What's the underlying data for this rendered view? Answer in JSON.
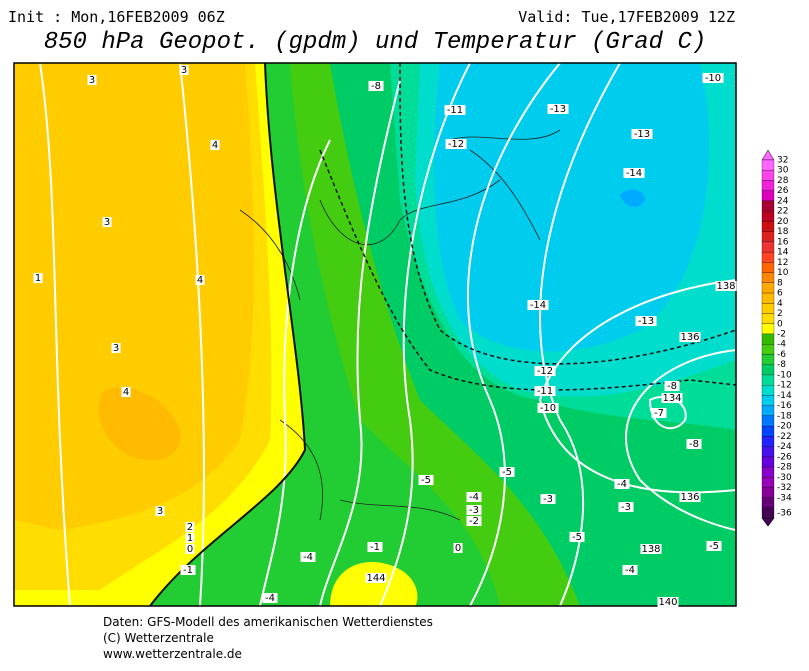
{
  "header": {
    "init": "Init : Mon,16FEB2009 06Z",
    "valid": "Valid: Tue,17FEB2009 12Z",
    "title": "850 hPa Geopot. (gpdm) und Temperatur (Grad C)"
  },
  "map": {
    "labels": [
      "3",
      "3",
      "4",
      "3",
      "1",
      "4",
      "3",
      "4",
      "3",
      "2",
      "1",
      "0",
      "-1",
      "-8",
      "-11",
      "-12",
      "-13",
      "-13",
      "-10",
      "-14",
      "-14",
      "-13",
      "138",
      "136",
      "-12",
      "-11",
      "-10",
      "-8",
      "134",
      "-7",
      "-8",
      "-5",
      "-5",
      "-4",
      "-3",
      "-2",
      "-3",
      "-4",
      "-3",
      "136",
      "-5",
      "138",
      "-5",
      "-4",
      "0",
      "-1",
      "-4",
      "144",
      "-4",
      "140"
    ]
  },
  "colorbar": {
    "levels": [
      {
        "label": "32",
        "color": "#ff66ff"
      },
      {
        "label": "30",
        "color": "#ff44ee"
      },
      {
        "label": "28",
        "color": "#ee22dd"
      },
      {
        "label": "26",
        "color": "#dd00bb"
      },
      {
        "label": "24",
        "color": "#aa0033"
      },
      {
        "label": "22",
        "color": "#bb0022"
      },
      {
        "label": "20",
        "color": "#cc1111"
      },
      {
        "label": "18",
        "color": "#dd2222"
      },
      {
        "label": "16",
        "color": "#ee3333"
      },
      {
        "label": "14",
        "color": "#ff4422"
      },
      {
        "label": "12",
        "color": "#ff6600"
      },
      {
        "label": "10",
        "color": "#ff8800"
      },
      {
        "label": "8",
        "color": "#ffaa00"
      },
      {
        "label": "6",
        "color": "#ffbb00"
      },
      {
        "label": "4",
        "color": "#ffcc00"
      },
      {
        "label": "2",
        "color": "#ffdd00"
      },
      {
        "label": "0",
        "color": "#ffff00"
      },
      {
        "label": "-2",
        "color": "#33bb00"
      },
      {
        "label": "-4",
        "color": "#44cc11"
      },
      {
        "label": "-6",
        "color": "#22cc33"
      },
      {
        "label": "-8",
        "color": "#00cc66"
      },
      {
        "label": "-10",
        "color": "#00dd99"
      },
      {
        "label": "-12",
        "color": "#00ddcc"
      },
      {
        "label": "-14",
        "color": "#00ccee"
      },
      {
        "label": "-16",
        "color": "#00aaff"
      },
      {
        "label": "-18",
        "color": "#0077ff"
      },
      {
        "label": "-20",
        "color": "#0044ff"
      },
      {
        "label": "-22",
        "color": "#2222ff"
      },
      {
        "label": "-24",
        "color": "#4411ee"
      },
      {
        "label": "-26",
        "color": "#6600dd"
      },
      {
        "label": "-28",
        "color": "#8800cc"
      },
      {
        "label": "-30",
        "color": "#9900bb"
      },
      {
        "label": "-32",
        "color": "#880099"
      },
      {
        "label": "-34",
        "color": "#660077"
      },
      {
        "label": "-36",
        "color": "#440055"
      }
    ]
  },
  "footer": {
    "line1": "Daten: GFS-Modell des amerikanischen Wetterdienstes",
    "line2": "(C) Wetterzentrale",
    "line3": "www.wetterzentrale.de"
  }
}
